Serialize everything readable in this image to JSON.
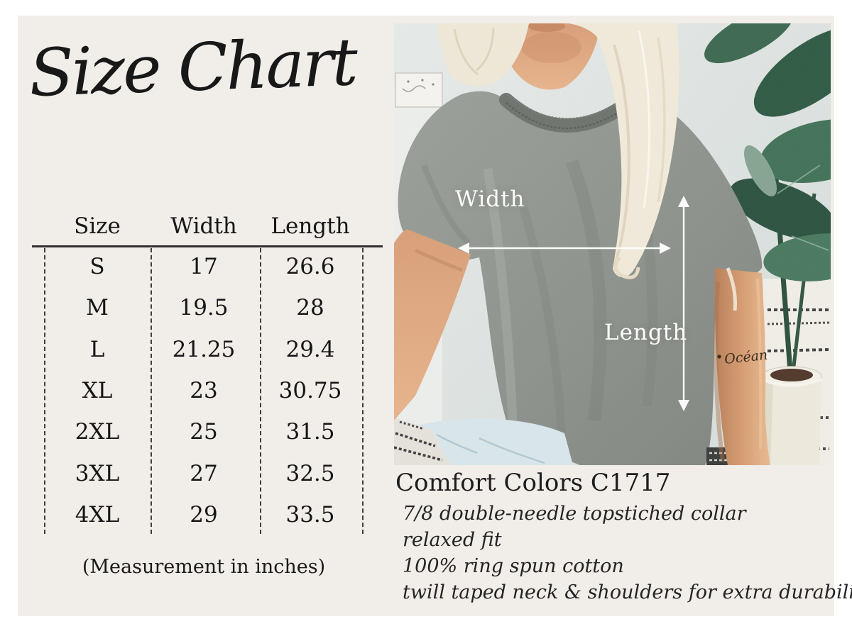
{
  "canvas": {
    "outer_bg": "#ffffff",
    "inner_bg": "#f1ede8",
    "text_color": "#1b1b1b"
  },
  "left_panel": {
    "title": "Size Chart",
    "table": {
      "columns": [
        "Size",
        "Width",
        "Length"
      ],
      "rows": [
        {
          "size": "S",
          "width": "17",
          "length": "26.6"
        },
        {
          "size": "M",
          "width": "19.5",
          "length": "28"
        },
        {
          "size": "L",
          "width": "21.25",
          "length": "29.4"
        },
        {
          "size": "XL",
          "width": "23",
          "length": "30.75"
        },
        {
          "size": "2XL",
          "width": "25",
          "length": "31.5"
        },
        {
          "size": "3XL",
          "width": "27",
          "length": "32.5"
        },
        {
          "size": "4XL",
          "width": "29",
          "length": "33.5"
        }
      ],
      "caption": "(Measurement in inches)"
    }
  },
  "photo": {
    "width_label": "Width",
    "length_label": "Length",
    "tattoo_text": "Océan",
    "colors": {
      "wall": "#dde4e1",
      "shirt": "#8e938e",
      "plant": "#35604a",
      "annotation": "#ffffff"
    }
  },
  "product": {
    "name": "Comfort Colors C1717",
    "features": [
      "7/8 double-needle topstiched collar",
      "relaxed fit",
      "100% ring spun cotton",
      "twill taped neck & shoulders for extra durability"
    ]
  },
  "chart_data": {
    "type": "table",
    "title": "Size Chart",
    "columns": [
      "Size",
      "Width",
      "Length"
    ],
    "units": "inches",
    "rows": [
      [
        "S",
        17,
        26.6
      ],
      [
        "M",
        19.5,
        28
      ],
      [
        "L",
        21.25,
        29.4
      ],
      [
        "XL",
        23,
        30.75
      ],
      [
        "2XL",
        25,
        31.5
      ],
      [
        "3XL",
        27,
        32.5
      ],
      [
        "4XL",
        29,
        33.5
      ]
    ],
    "note": "(Measurement in inches)"
  }
}
